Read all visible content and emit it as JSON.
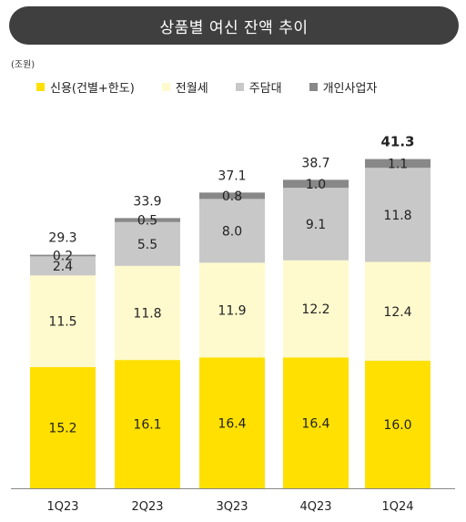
{
  "title": "상품별 여신 잔액 추이",
  "unit_label": "(조원)",
  "colors": {
    "credit": "#FFE000",
    "jeonse": "#FFFACD",
    "mortgage": "#C8C8C8",
    "business": "#888888"
  },
  "chart_data": {
    "type": "bar",
    "stacked": true,
    "categories": [
      "1Q23",
      "2Q23",
      "3Q23",
      "4Q23",
      "1Q24"
    ],
    "series": [
      {
        "name": "신용(건별+한도)",
        "key": "credit",
        "values": [
          15.2,
          16.1,
          16.4,
          16.4,
          16.0
        ]
      },
      {
        "name": "전월세",
        "key": "jeonse",
        "values": [
          11.5,
          11.8,
          11.9,
          12.2,
          12.4
        ]
      },
      {
        "name": "주담대",
        "key": "mortgage",
        "values": [
          2.4,
          5.5,
          8.0,
          9.1,
          11.8
        ]
      },
      {
        "name": "개인사업자",
        "key": "business",
        "values": [
          0.2,
          0.5,
          0.8,
          1.0,
          1.1
        ]
      }
    ],
    "totals": [
      "29.3",
      "33.9",
      "37.1",
      "38.7",
      "41.3"
    ],
    "value_labels": [
      [
        "15.2",
        "16.1",
        "16.4",
        "16.4",
        "16.0"
      ],
      [
        "11.5",
        "11.8",
        "11.9",
        "12.2",
        "12.4"
      ],
      [
        "2.4",
        "5.5",
        "8.0",
        "9.1",
        "11.8"
      ],
      [
        "0.2",
        "0.5",
        "0.8",
        "1.0",
        "1.1"
      ]
    ],
    "highlight_total_index": 4,
    "legend_position": "top"
  }
}
